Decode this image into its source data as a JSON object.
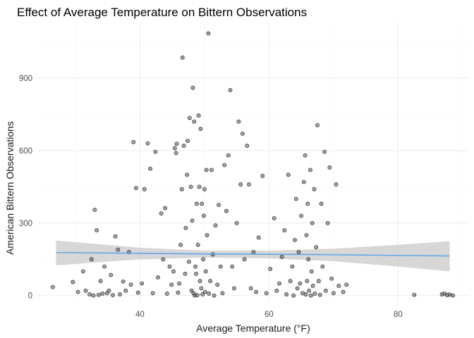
{
  "chart_data": {
    "type": "scatter",
    "title": "Effect of Average Temperature on Bittern Observations",
    "xlabel": "Average Temperature (°F)",
    "ylabel": "American Bittern Observations",
    "xlim": [
      24,
      91
    ],
    "ylim": [
      -30,
      1130
    ],
    "x_ticks": [
      40,
      60,
      80
    ],
    "y_ticks": [
      0,
      300,
      600,
      900
    ],
    "grid": true,
    "legend": "none",
    "colors": {
      "points": "#595959",
      "trend_line": "#5ea8ea",
      "confidence_band": "#bebebe"
    },
    "trend": {
      "method": "linear with confidence band",
      "x": [
        27,
        40,
        50,
        60,
        70,
        80,
        88
      ],
      "y": [
        178,
        175,
        172,
        171,
        169,
        166,
        164
      ],
      "lower": [
        125,
        150,
        157,
        154,
        142,
        120,
        100
      ],
      "upper": [
        228,
        198,
        186,
        186,
        194,
        210,
        225
      ]
    },
    "points": [
      [
        26.5,
        35
      ],
      [
        29.6,
        56
      ],
      [
        30.4,
        15
      ],
      [
        31.2,
        100
      ],
      [
        31.6,
        20
      ],
      [
        32.2,
        5
      ],
      [
        32.5,
        150
      ],
      [
        32.8,
        0
      ],
      [
        33.0,
        355
      ],
      [
        33.3,
        270
      ],
      [
        33.6,
        3
      ],
      [
        33.9,
        60
      ],
      [
        34.2,
        8
      ],
      [
        34.5,
        120
      ],
      [
        34.9,
        10
      ],
      [
        35.2,
        20
      ],
      [
        35.5,
        85
      ],
      [
        35.8,
        2
      ],
      [
        36.2,
        245
      ],
      [
        36.6,
        190
      ],
      [
        36.9,
        5
      ],
      [
        37.4,
        58
      ],
      [
        37.8,
        20
      ],
      [
        38.3,
        180
      ],
      [
        38.6,
        45
      ],
      [
        39.0,
        635
      ],
      [
        39.4,
        445
      ],
      [
        39.7,
        12
      ],
      [
        40.3,
        50
      ],
      [
        40.7,
        440
      ],
      [
        41.2,
        630
      ],
      [
        41.6,
        525
      ],
      [
        42.0,
        10
      ],
      [
        42.4,
        595
      ],
      [
        42.8,
        75
      ],
      [
        43.3,
        340
      ],
      [
        43.6,
        150
      ],
      [
        43.9,
        362
      ],
      [
        44.2,
        8
      ],
      [
        44.6,
        120
      ],
      [
        44.9,
        45
      ],
      [
        45.2,
        100
      ],
      [
        45.4,
        610
      ],
      [
        45.6,
        590
      ],
      [
        45.7,
        628
      ],
      [
        45.9,
        12
      ],
      [
        46.1,
        50
      ],
      [
        46.3,
        210
      ],
      [
        46.5,
        440
      ],
      [
        46.6,
        985
      ],
      [
        46.8,
        620
      ],
      [
        47.0,
        90
      ],
      [
        47.1,
        280
      ],
      [
        47.3,
        500
      ],
      [
        47.4,
        640
      ],
      [
        47.6,
        140
      ],
      [
        47.7,
        735
      ],
      [
        47.9,
        450
      ],
      [
        48.0,
        20
      ],
      [
        48.1,
        310
      ],
      [
        48.2,
        860
      ],
      [
        48.3,
        10
      ],
      [
        48.4,
        720
      ],
      [
        48.5,
        0
      ],
      [
        48.6,
        120
      ],
      [
        48.7,
        90
      ],
      [
        48.8,
        380
      ],
      [
        48.9,
        2
      ],
      [
        49.0,
        210
      ],
      [
        49.1,
        745
      ],
      [
        49.2,
        450
      ],
      [
        49.3,
        60
      ],
      [
        49.4,
        690
      ],
      [
        49.5,
        30
      ],
      [
        49.6,
        380
      ],
      [
        49.7,
        5
      ],
      [
        49.8,
        150
      ],
      [
        49.9,
        330
      ],
      [
        50.0,
        440
      ],
      [
        50.1,
        15
      ],
      [
        50.2,
        100
      ],
      [
        50.3,
        520
      ],
      [
        50.4,
        250
      ],
      [
        50.6,
        1085
      ],
      [
        50.7,
        8
      ],
      [
        50.9,
        60
      ],
      [
        51.1,
        520
      ],
      [
        51.3,
        170
      ],
      [
        51.5,
        0
      ],
      [
        51.7,
        290
      ],
      [
        52.0,
        45
      ],
      [
        52.2,
        375
      ],
      [
        52.5,
        120
      ],
      [
        52.8,
        10
      ],
      [
        53.1,
        540
      ],
      [
        53.4,
        350
      ],
      [
        53.7,
        580
      ],
      [
        54.0,
        850
      ],
      [
        54.3,
        120
      ],
      [
        54.6,
        30
      ],
      [
        55.0,
        300
      ],
      [
        55.3,
        720
      ],
      [
        55.6,
        460
      ],
      [
        55.9,
        670
      ],
      [
        56.2,
        150
      ],
      [
        56.6,
        620
      ],
      [
        56.9,
        460
      ],
      [
        57.2,
        30
      ],
      [
        57.6,
        180
      ],
      [
        58.0,
        15
      ],
      [
        58.4,
        240
      ],
      [
        59.0,
        495
      ],
      [
        59.6,
        10
      ],
      [
        60.2,
        110
      ],
      [
        60.8,
        320
      ],
      [
        61.2,
        20
      ],
      [
        61.6,
        50
      ],
      [
        62.0,
        160
      ],
      [
        62.4,
        270
      ],
      [
        62.7,
        5
      ],
      [
        63.0,
        500
      ],
      [
        63.3,
        60
      ],
      [
        63.6,
        120
      ],
      [
        63.8,
        0
      ],
      [
        64.0,
        230
      ],
      [
        64.2,
        400
      ],
      [
        64.4,
        30
      ],
      [
        64.6,
        180
      ],
      [
        64.8,
        50
      ],
      [
        65.0,
        330
      ],
      [
        65.2,
        10
      ],
      [
        65.4,
        470
      ],
      [
        65.6,
        580
      ],
      [
        65.7,
        5
      ],
      [
        65.8,
        250
      ],
      [
        65.9,
        60
      ],
      [
        66.0,
        380
      ],
      [
        66.1,
        150
      ],
      [
        66.2,
        20
      ],
      [
        66.4,
        520
      ],
      [
        66.5,
        0
      ],
      [
        66.6,
        100
      ],
      [
        66.7,
        300
      ],
      [
        66.8,
        40
      ],
      [
        67.0,
        440
      ],
      [
        67.1,
        8
      ],
      [
        67.3,
        200
      ],
      [
        67.5,
        705
      ],
      [
        67.7,
        60
      ],
      [
        67.9,
        3
      ],
      [
        68.1,
        380
      ],
      [
        68.3,
        120
      ],
      [
        68.6,
        595
      ],
      [
        68.8,
        20
      ],
      [
        69.1,
        300
      ],
      [
        69.4,
        530
      ],
      [
        69.7,
        70
      ],
      [
        70.0,
        10
      ],
      [
        70.4,
        460
      ],
      [
        70.8,
        40
      ],
      [
        71.5,
        15
      ],
      [
        72.0,
        45
      ],
      [
        82.5,
        3
      ],
      [
        86.8,
        5
      ],
      [
        87.2,
        8
      ],
      [
        87.6,
        2
      ],
      [
        88.0,
        4
      ],
      [
        88.5,
        0
      ]
    ]
  }
}
